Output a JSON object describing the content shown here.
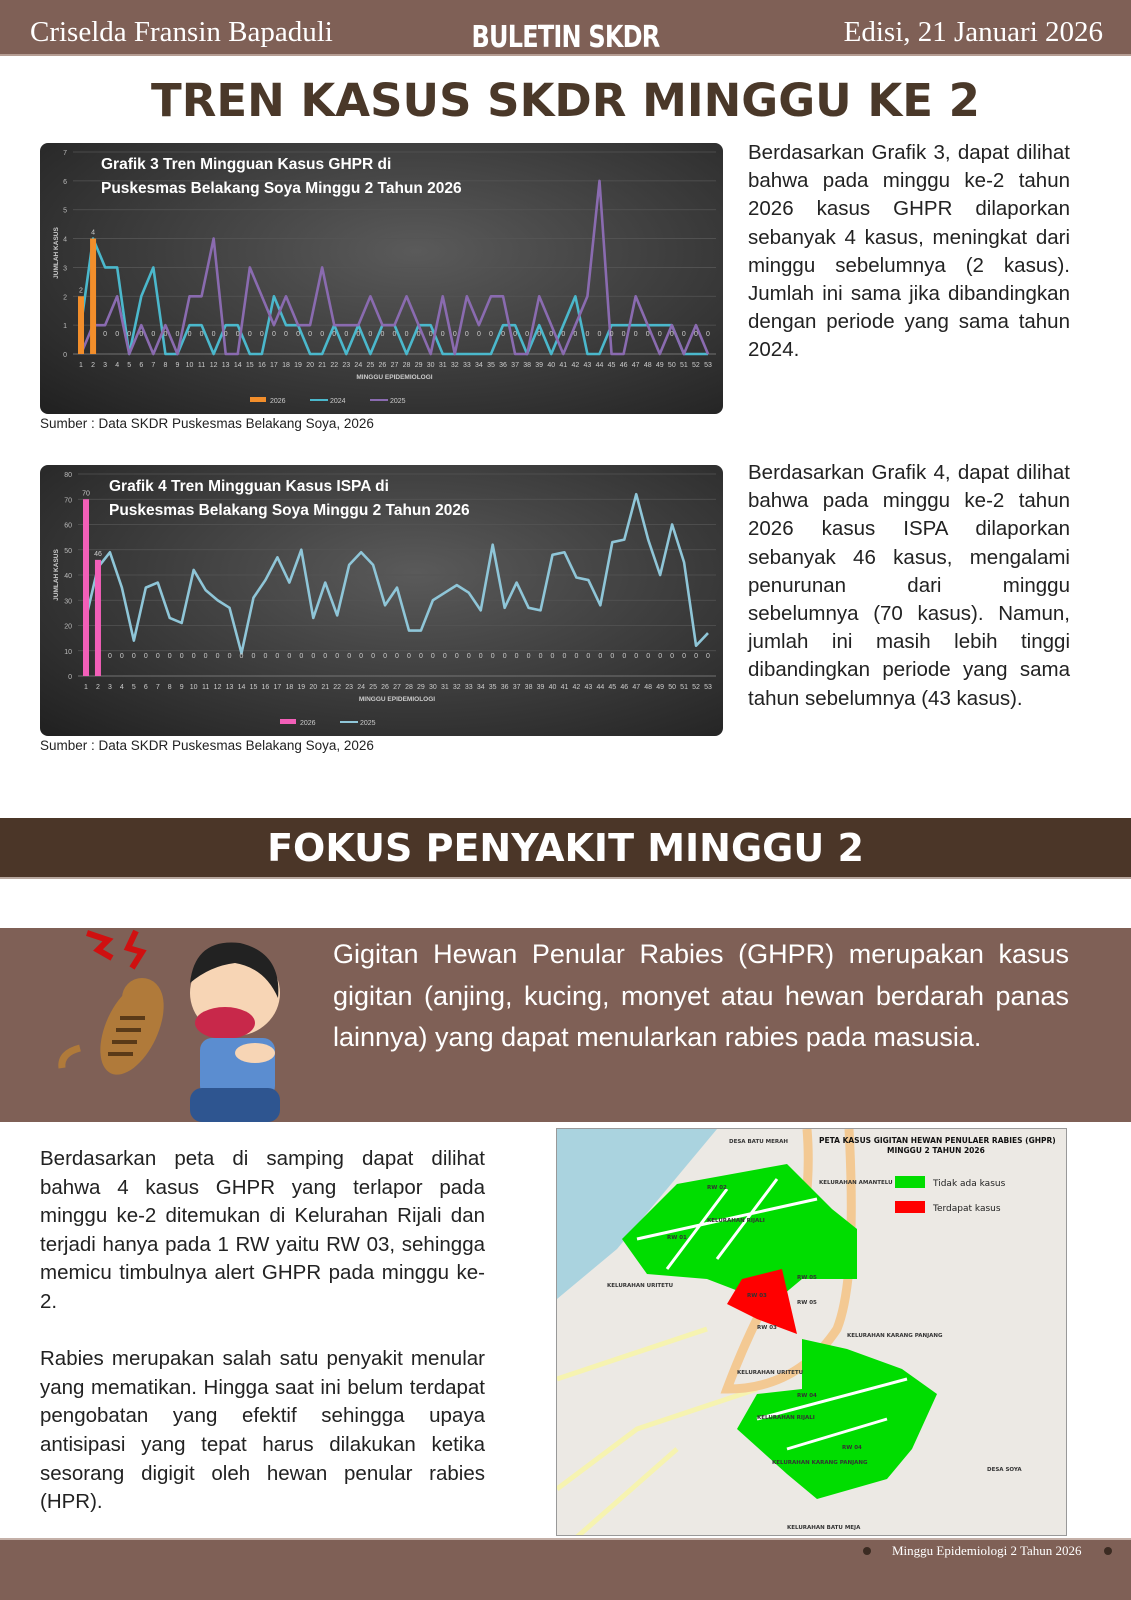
{
  "header": {
    "author": "Criselda Fransin Bapaduli",
    "bulletin": "BULETIN SKDR",
    "edition": "Edisi, 21 Januari 2026"
  },
  "section1": {
    "title": "TREN KASUS SKDR MINGGU KE 2"
  },
  "chart3": {
    "source": "Sumber : Data SKDR Puskesmas Belakang Soya, 2026",
    "paragraph": "Berdasarkan Grafik 3, dapat dilihat bahwa pada minggu ke-2 tahun 2026 kasus GHPR dilaporkan sebanyak 4 kasus, meningkat dari minggu sebelumnya (2 kasus). Jumlah ini sama jika dibandingkan dengan periode yang sama tahun 2024."
  },
  "chart4": {
    "source": "Sumber : Data SKDR Puskesmas Belakang Soya, 2026",
    "paragraph": "Berdasarkan Grafik 4, dapat dilihat bahwa pada minggu ke-2 tahun 2026 kasus ISPA dilaporkan sebanyak 46 kasus, mengalami penurunan dari minggu sebelumnya (70 kasus). Namun, jumlah ini masih lebih tinggi dibandingkan periode yang sama tahun sebelumnya (43 kasus)."
  },
  "chart_data": [
    {
      "type": "bar+line",
      "title": "Grafik 3 Tren Mingguan Kasus GHPR di Puskesmas Belakang Soya Minggu 2 Tahun 2026",
      "xlabel": "MINGGU EPIDEMIOLOGI",
      "ylabel": "JUMLAH KASUS",
      "ylim": [
        0,
        7
      ],
      "yticks": [
        0,
        1,
        2,
        3,
        4,
        5,
        6,
        7
      ],
      "grid": true,
      "legend": "bottom",
      "x": [
        1,
        2,
        3,
        4,
        5,
        6,
        7,
        8,
        9,
        10,
        11,
        12,
        13,
        14,
        15,
        16,
        17,
        18,
        19,
        20,
        21,
        22,
        23,
        24,
        25,
        26,
        27,
        28,
        29,
        30,
        31,
        32,
        33,
        34,
        35,
        36,
        37,
        38,
        39,
        40,
        41,
        42,
        43,
        44,
        45,
        46,
        47,
        48,
        49,
        50,
        51,
        52,
        53
      ],
      "series": [
        {
          "name": "2026",
          "type": "bar",
          "color": "#f28e2b",
          "values": [
            2,
            4,
            0,
            0,
            0,
            0,
            0,
            0,
            0,
            0,
            0,
            0,
            0,
            0,
            0,
            0,
            0,
            0,
            0,
            0,
            0,
            0,
            0,
            0,
            0,
            0,
            0,
            0,
            0,
            0,
            0,
            0,
            0,
            0,
            0,
            0,
            0,
            0,
            0,
            0,
            0,
            0,
            0,
            0,
            0,
            0,
            0,
            0,
            0,
            0,
            0,
            0,
            0
          ]
        },
        {
          "name": "2024",
          "type": "line",
          "color": "#4bb8cc",
          "values": [
            1,
            4,
            3,
            3,
            0,
            2,
            3,
            0,
            0,
            1,
            1,
            0,
            1,
            1,
            0,
            0,
            2,
            1,
            1,
            0,
            0,
            1,
            0,
            1,
            0,
            1,
            1,
            0,
            1,
            1,
            0,
            0,
            0,
            0,
            0,
            1,
            1,
            0,
            1,
            0,
            1,
            2,
            0,
            0,
            1,
            1,
            1,
            1,
            1,
            1,
            0,
            0,
            0
          ]
        },
        {
          "name": "2025",
          "type": "line",
          "color": "#8a6bb0",
          "values": [
            0,
            1,
            1,
            2,
            0,
            1,
            0,
            1,
            0,
            2,
            2,
            4,
            0,
            0,
            3,
            2,
            1,
            2,
            1,
            1,
            3,
            1,
            1,
            1,
            2,
            1,
            1,
            2,
            1,
            0,
            2,
            0,
            2,
            1,
            2,
            2,
            0,
            0,
            2,
            1,
            0,
            1,
            2,
            6,
            0,
            0,
            2,
            1,
            0,
            1,
            0,
            1,
            0
          ]
        }
      ]
    },
    {
      "type": "bar+line",
      "title": "Grafik 4 Tren Mingguan Kasus ISPA di Puskesmas Belakang Soya Minggu 2 Tahun 2026",
      "xlabel": "MINGGU EPIDEMIOLOGI",
      "ylabel": "JUMLAH KASUS",
      "ylim": [
        0,
        80
      ],
      "yticks": [
        0,
        10,
        20,
        30,
        40,
        50,
        60,
        70,
        80
      ],
      "grid": true,
      "legend": "bottom",
      "x": [
        1,
        2,
        3,
        4,
        5,
        6,
        7,
        8,
        9,
        10,
        11,
        12,
        13,
        14,
        15,
        16,
        17,
        18,
        19,
        20,
        21,
        22,
        23,
        24,
        25,
        26,
        27,
        28,
        29,
        30,
        31,
        32,
        33,
        34,
        35,
        36,
        37,
        38,
        39,
        40,
        41,
        42,
        43,
        44,
        45,
        46,
        47,
        48,
        49,
        50,
        51,
        52,
        53
      ],
      "series": [
        {
          "name": "2026",
          "type": "bar",
          "color": "#f25fb8",
          "values": [
            70,
            46,
            0,
            0,
            0,
            0,
            0,
            0,
            0,
            0,
            0,
            0,
            0,
            0,
            0,
            0,
            0,
            0,
            0,
            0,
            0,
            0,
            0,
            0,
            0,
            0,
            0,
            0,
            0,
            0,
            0,
            0,
            0,
            0,
            0,
            0,
            0,
            0,
            0,
            0,
            0,
            0,
            0,
            0,
            0,
            0,
            0,
            0,
            0,
            0,
            0,
            0,
            0
          ]
        },
        {
          "name": "2025",
          "type": "line",
          "color": "#8fc6d8",
          "values": [
            23,
            43,
            49,
            35,
            14,
            35,
            37,
            23,
            21,
            42,
            34,
            30,
            27,
            9,
            31,
            38,
            47,
            37,
            50,
            23,
            37,
            24,
            44,
            49,
            44,
            28,
            35,
            18,
            18,
            30,
            33,
            36,
            33,
            26,
            52,
            27,
            37,
            27,
            26,
            48,
            49,
            39,
            38,
            28,
            53,
            54,
            72,
            54,
            40,
            60,
            45,
            12,
            17
          ]
        }
      ]
    }
  ],
  "section2": {
    "title": "FOKUS PENYAKIT MINGGU 2",
    "definition": "Gigitan Hewan Penular Rabies (GHPR) merupakan kasus gigitan (anjing, kucing, monyet atau hewan berdarah panas lainnya) yang dapat menularkan rabies pada masusia.",
    "paragraph1": "Berdasarkan peta di samping dapat dilihat bahwa 4 kasus GHPR yang terlapor pada minggu ke-2  ditemukan di Kelurahan Rijali dan terjadi hanya pada 1 RW yaitu RW 03, sehingga memicu timbulnya alert GHPR pada minggu ke-2.",
    "paragraph2": "Rabies merupakan salah satu penyakit menular yang mematikan. Hingga saat ini belum terdapat pengobatan yang efektif sehingga upaya antisipasi yang tepat harus dilakukan ketika sesorang digigit oleh hewan penular rabies (HPR)."
  },
  "map": {
    "title": "PETA KASUS GIGITAN HEWAN PENULAER RABIES (GHPR)",
    "subtitle": "MINGGU 2 TAHUN 2026",
    "legend": [
      {
        "label": "Tidak ada kasus",
        "color": "#00dd00"
      },
      {
        "label": "Terdapat kasus",
        "color": "#ff0000"
      }
    ],
    "labels": {
      "batu_merah": "DESA BATU MERAH",
      "amantelu": "KELURAHAN AMANTELU",
      "uritetu": "KELURAHAN URITETU",
      "uritetu2": "KELURAHAN URITETU",
      "karang_panjang": "KELURAHAN KARANG PANJANG",
      "rijali": "KELURAHAN RIJALI",
      "rijali2": "KELURAHAN RIJALI",
      "karang_panjang2": "KELURAHAN KARANG PANJANG",
      "soya": "DESA SOYA",
      "batu_meja": "KELURAHAN BATU MEJA",
      "rw03": "RW 03",
      "rw03b": "RW 03",
      "rw05": "RW 05",
      "rw05b": "RW 05",
      "rw04": "RW 04",
      "rw04b": "RW 04",
      "rw01": "RW 01",
      "rw02": "RW 02"
    }
  },
  "footer": {
    "text": "Minggu Epidemiologi 2 Tahun 2026"
  }
}
